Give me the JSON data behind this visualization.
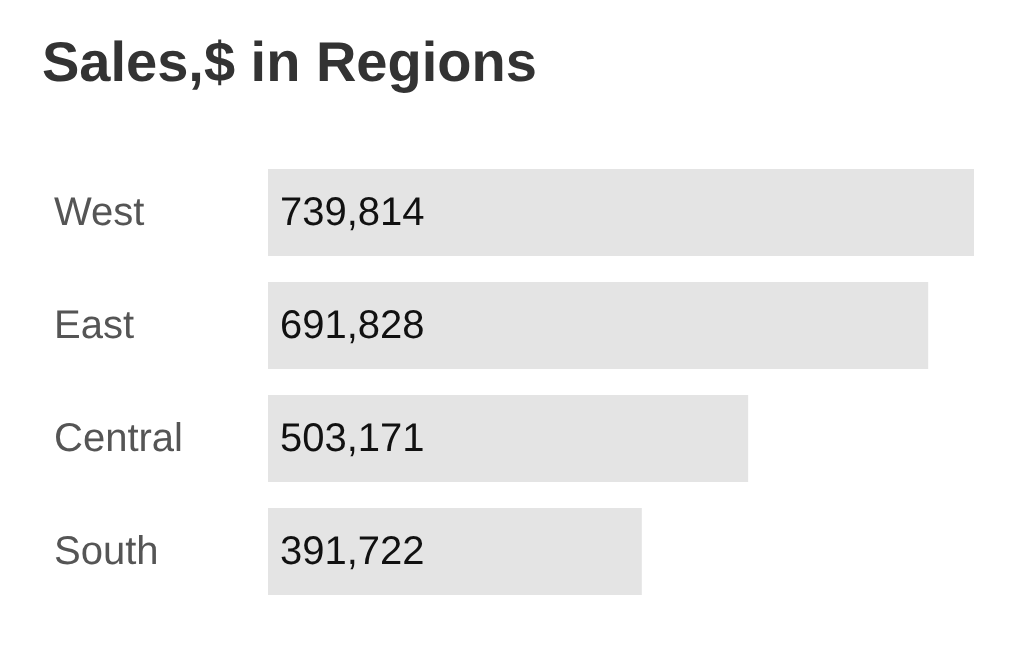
{
  "chart_data": {
    "type": "bar",
    "orientation": "horizontal",
    "title": "Sales,$ in Regions",
    "categories": [
      "West",
      "East",
      "Central",
      "South"
    ],
    "values": [
      739814,
      691828,
      503171,
      391722
    ],
    "value_labels": [
      "739,814",
      "691,828",
      "503,171",
      "391,722"
    ],
    "color": "#e4e4e4"
  }
}
